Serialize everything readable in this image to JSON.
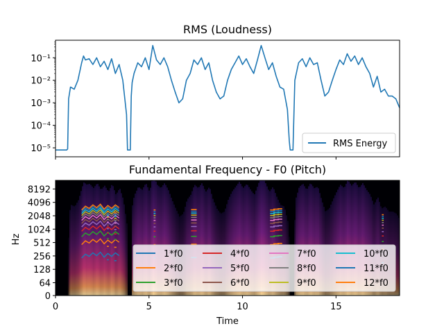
{
  "chart_data": [
    {
      "type": "line",
      "title": "RMS (Loudness)",
      "xlabel": "",
      "ylabel": "",
      "yscale": "log",
      "ylim": [
        4e-06,
        0.6
      ],
      "xlim": [
        0,
        18.4
      ],
      "ytick_labels": [
        "10⁻⁵",
        "10⁻⁴",
        "10⁻³",
        "10⁻²",
        "10⁻¹"
      ],
      "ytick_values": [
        1e-05,
        0.0001,
        0.001,
        0.01,
        0.1
      ],
      "legend_position": "lower right",
      "series": [
        {
          "name": "RMS Energy",
          "color": "#1f77b4",
          "x": [
            0.0,
            0.6,
            0.65,
            0.7,
            0.8,
            1.0,
            1.2,
            1.4,
            1.5,
            1.6,
            1.8,
            2.0,
            2.2,
            2.4,
            2.6,
            2.8,
            3.0,
            3.2,
            3.4,
            3.6,
            3.8,
            3.85,
            3.9,
            4.0,
            4.05,
            4.1,
            4.2,
            4.4,
            4.6,
            4.8,
            5.0,
            5.2,
            5.4,
            5.6,
            5.8,
            6.0,
            6.2,
            6.4,
            6.6,
            6.8,
            7.0,
            7.2,
            7.4,
            7.6,
            7.8,
            8.0,
            8.2,
            8.4,
            8.6,
            8.8,
            9.0,
            9.2,
            9.4,
            9.6,
            9.8,
            10.0,
            10.2,
            10.4,
            10.6,
            10.8,
            11.0,
            11.2,
            11.4,
            11.6,
            11.8,
            12.0,
            12.2,
            12.4,
            12.5,
            12.55,
            12.6,
            12.7,
            12.8,
            13.0,
            13.2,
            13.4,
            13.6,
            13.8,
            14.0,
            14.2,
            14.4,
            14.6,
            14.8,
            15.0,
            15.2,
            15.4,
            15.6,
            15.8,
            16.0,
            16.2,
            16.4,
            16.6,
            16.8,
            17.0,
            17.2,
            17.4,
            17.6,
            17.8,
            18.0,
            18.2,
            18.4
          ],
          "y": [
            8e-06,
            8e-06,
            9e-06,
            0.0015,
            0.005,
            0.004,
            0.01,
            0.06,
            0.12,
            0.08,
            0.09,
            0.05,
            0.1,
            0.04,
            0.07,
            0.03,
            0.09,
            0.02,
            0.05,
            0.01,
            0.0003,
            8e-06,
            8e-06,
            8e-06,
            0.002,
            0.008,
            0.02,
            0.06,
            0.04,
            0.1,
            0.03,
            0.35,
            0.08,
            0.05,
            0.1,
            0.04,
            0.01,
            0.003,
            0.001,
            0.0015,
            0.01,
            0.02,
            0.08,
            0.05,
            0.1,
            0.03,
            0.06,
            0.01,
            0.003,
            0.0015,
            0.002,
            0.01,
            0.03,
            0.06,
            0.12,
            0.05,
            0.09,
            0.04,
            0.02,
            0.08,
            0.35,
            0.1,
            0.03,
            0.06,
            0.015,
            0.005,
            0.004,
            0.0005,
            2e-05,
            8e-06,
            8e-06,
            8e-06,
            0.01,
            0.06,
            0.09,
            0.04,
            0.1,
            0.05,
            0.06,
            0.01,
            0.002,
            0.003,
            0.01,
            0.03,
            0.08,
            0.05,
            0.15,
            0.07,
            0.12,
            0.05,
            0.1,
            0.04,
            0.02,
            0.005,
            0.015,
            0.003,
            0.004,
            0.002,
            0.002,
            0.0015,
            0.0006
          ]
        }
      ]
    },
    {
      "type": "heatmap",
      "title": "Fundamental Frequency - F0 (Pitch)",
      "xlabel": "Time",
      "ylabel": "Hz",
      "yscale": "log2",
      "xlim": [
        0,
        18.4
      ],
      "xticks": [
        0,
        5,
        10,
        15
      ],
      "ytick_labels": [
        "0",
        "64",
        "128",
        "256",
        "512",
        "1024",
        "2048",
        "4096",
        "8192"
      ],
      "legend_position": "lower right",
      "legend_columns": 4,
      "series": [
        {
          "name": "1*f0",
          "color": "#1f77b4"
        },
        {
          "name": "2*f0",
          "color": "#ff7f0e"
        },
        {
          "name": "3*f0",
          "color": "#2ca02c"
        },
        {
          "name": "4*f0",
          "color": "#d62728"
        },
        {
          "name": "5*f0",
          "color": "#9467bd"
        },
        {
          "name": "6*f0",
          "color": "#8c564b"
        },
        {
          "name": "7*f0",
          "color": "#e377c2"
        },
        {
          "name": "8*f0",
          "color": "#7f7f7f"
        },
        {
          "name": "9*f0",
          "color": "#bcbd22"
        },
        {
          "name": "10*f0",
          "color": "#17becf"
        },
        {
          "name": "11*f0",
          "color": "#1f77b4"
        },
        {
          "name": "12*f0",
          "color": "#ff7f0e"
        }
      ],
      "f0_contour": {
        "t": [
          1.4,
          1.6,
          1.8,
          2.0,
          2.2,
          2.4,
          2.6,
          2.8,
          3.0,
          3.2,
          3.4
        ],
        "hz": [
          230,
          280,
          250,
          300,
          260,
          310,
          240,
          290,
          250,
          300,
          260
        ]
      },
      "bursts": [
        {
          "t": 2.8,
          "hz": 210,
          "width": 0.1
        },
        {
          "t": 3.2,
          "hz": 200,
          "width": 0.12
        },
        {
          "t": 5.3,
          "hz": 230,
          "width": 0.1
        },
        {
          "t": 7.4,
          "hz": 235,
          "width": 0.3
        },
        {
          "t": 11.6,
          "hz": 230,
          "width": 0.25
        },
        {
          "t": 11.8,
          "hz": 240,
          "width": 0.3
        },
        {
          "t": 12.0,
          "hz": 245,
          "width": 0.25
        },
        {
          "t": 17.5,
          "hz": 180,
          "width": 0.1
        }
      ]
    }
  ]
}
